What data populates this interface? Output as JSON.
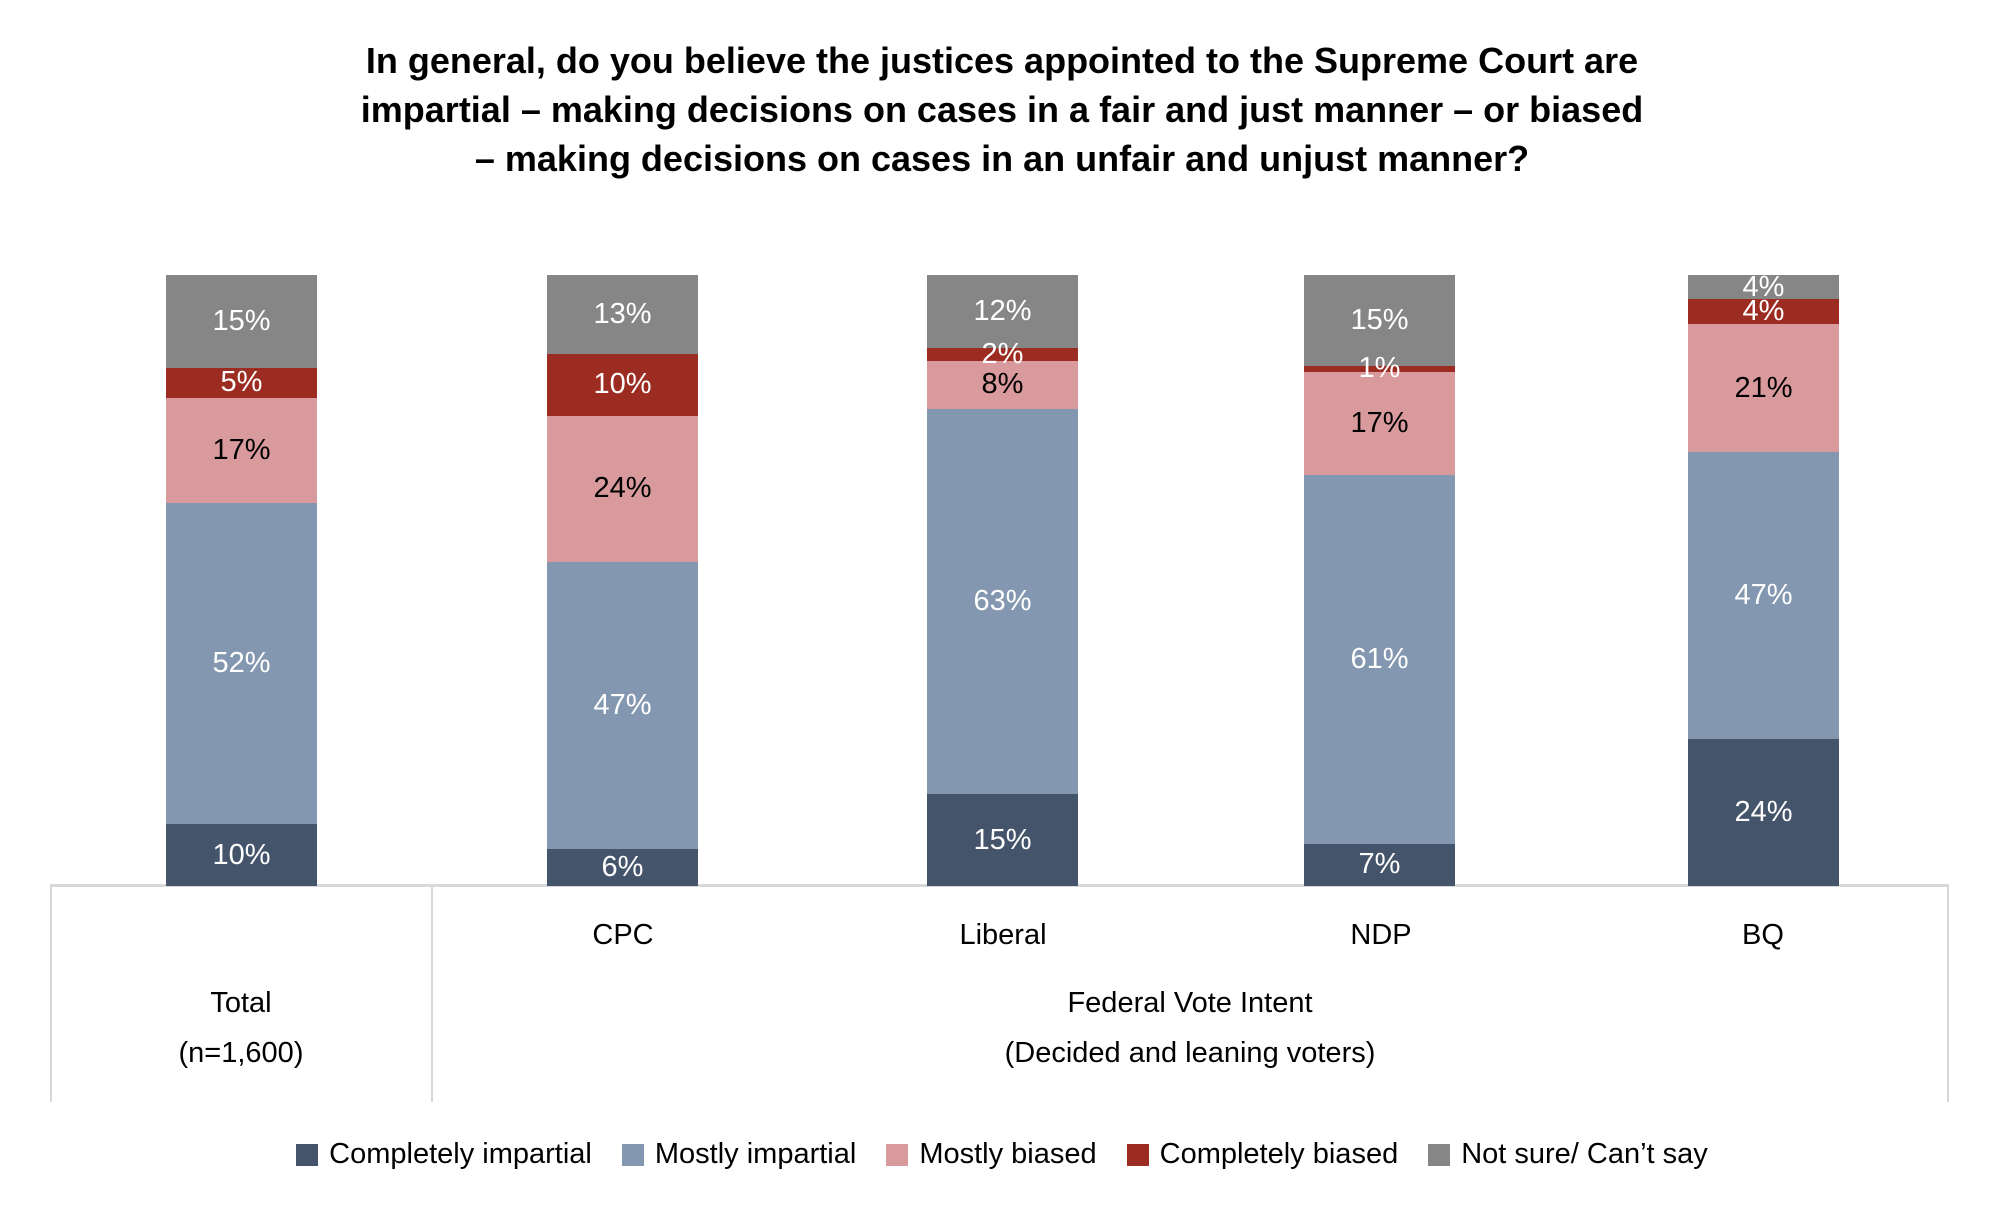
{
  "title": {
    "lines": [
      "In general, do you believe the justices appointed to the Supreme Court are",
      "impartial – making decisions on cases in a fair and just manner – or biased",
      "– making decisions on cases in an unfair and unjust manner?"
    ]
  },
  "chart_data": {
    "type": "bar",
    "stacked": true,
    "percent_stacked": true,
    "unit": "%",
    "ylim": [
      0,
      100
    ],
    "grid": false,
    "legend_position": "bottom",
    "categories": [
      "Total (n=1,600)",
      "CPC",
      "Liberal",
      "NDP",
      "BQ"
    ],
    "series": [
      {
        "name": "Completely impartial",
        "color": "#44546A",
        "label_color": "#FFFFFF",
        "values": [
          10,
          6,
          15,
          7,
          24
        ]
      },
      {
        "name": "Mostly impartial",
        "color": "#8497B0",
        "label_color": "#FFFFFF",
        "values": [
          52,
          47,
          63,
          61,
          47
        ]
      },
      {
        "name": "Mostly biased",
        "color": "#D99A9D",
        "label_color": "#000000",
        "values": [
          17,
          24,
          8,
          17,
          21
        ]
      },
      {
        "name": "Completely biased",
        "color": "#9C2B22",
        "label_color": "#FFFFFF",
        "values": [
          5,
          10,
          2,
          1,
          4
        ]
      },
      {
        "name": "Not sure/ Can’t say",
        "color": "#868686",
        "label_color": "#FFFFFF",
        "values": [
          15,
          13,
          12,
          15,
          4
        ]
      }
    ],
    "data_label_format": "{value}%"
  },
  "axis": {
    "category_labels": [
      "CPC",
      "Liberal",
      "NDP",
      "BQ"
    ],
    "left_group": {
      "line1": "Total",
      "line2": "(n=1,600)"
    },
    "right_group": {
      "line1": "Federal Vote Intent",
      "line2": "(Decided and leaning voters)"
    }
  }
}
